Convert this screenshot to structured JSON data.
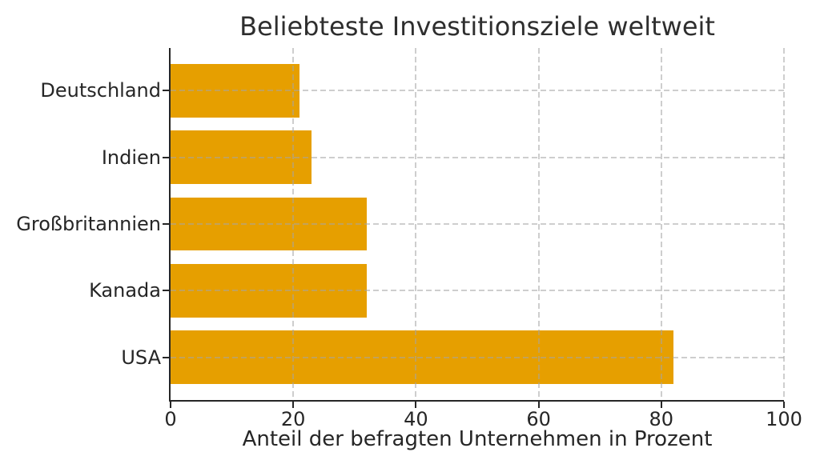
{
  "chart_data": {
    "type": "bar",
    "orientation": "horizontal",
    "title": "Beliebteste Investitionsziele weltweit",
    "xlabel": "Anteil der befragten Unternehmen in Prozent",
    "ylabel": "",
    "categories": [
      "Deutschland",
      "Indien",
      "Großbritannien",
      "Kanada",
      "USA"
    ],
    "values": [
      21,
      23,
      32,
      32,
      82
    ],
    "xlim": [
      0,
      100
    ],
    "xticks": [
      0,
      20,
      40,
      60,
      80,
      100
    ],
    "grid": true,
    "grid_style": "dashed",
    "legend": "none",
    "bar_color": "#E69F00",
    "grid_color": "#CCCCCC",
    "axis_color": "#262626",
    "text_color": "#262626"
  }
}
